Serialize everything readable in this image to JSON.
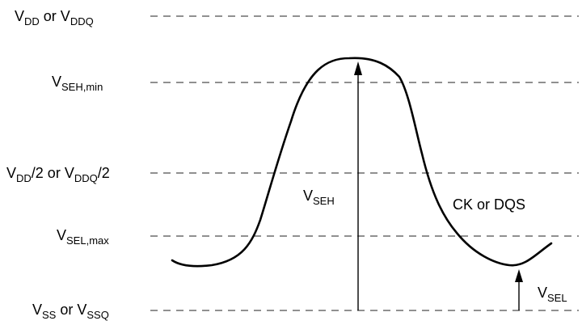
{
  "diagram": {
    "levels": {
      "vdd": {
        "a": "V",
        "a_sub": "DD",
        "mid": " or V",
        "b_sub": "DDQ",
        "tail": ""
      },
      "vseh_min": {
        "a": "V",
        "a_sub": "SEH,min",
        "mid": "",
        "b_sub": "",
        "tail": ""
      },
      "vdd_half": {
        "a": "V",
        "a_sub": "DD",
        "mid": "/2 or V",
        "b_sub": "DDQ",
        "tail": "/2"
      },
      "vsel_max": {
        "a": "V",
        "a_sub": "SEL,max",
        "mid": "",
        "b_sub": "",
        "tail": ""
      },
      "vss": {
        "a": "V",
        "a_sub": "SS",
        "mid": " or V",
        "b_sub": "SSQ",
        "tail": ""
      }
    },
    "arrows": {
      "vseh": {
        "main": "V",
        "sub": "SEH"
      },
      "vsel": {
        "main": "V",
        "sub": "SEL"
      }
    },
    "signal_label": "CK or DQS",
    "colors": {
      "line": "#000000",
      "dashed": "#222222",
      "background": "#ffffff"
    }
  }
}
